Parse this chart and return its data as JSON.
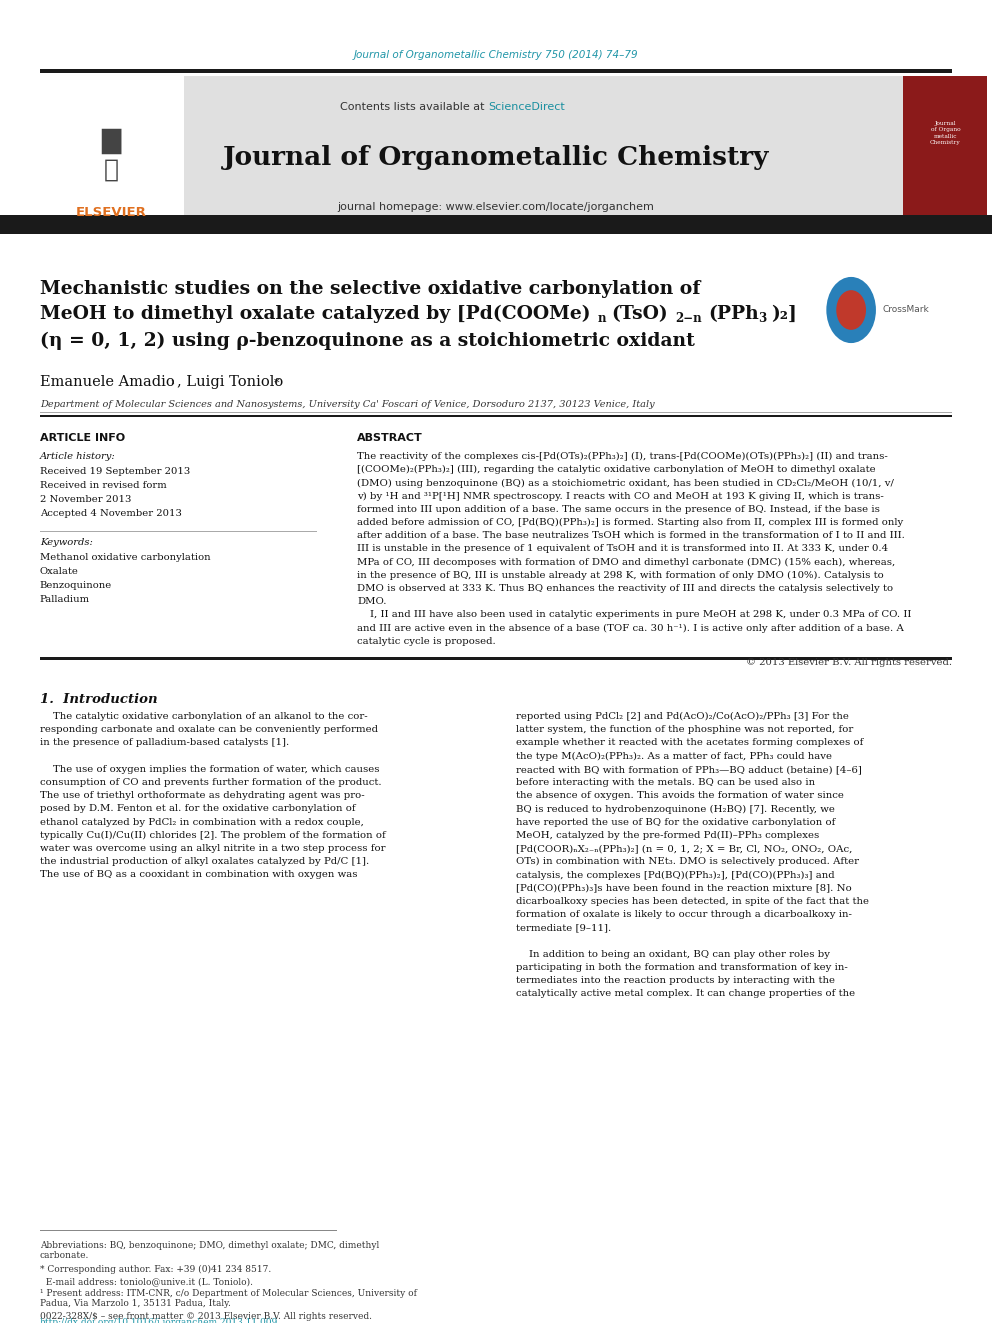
{
  "page_width": 9.92,
  "page_height": 13.23,
  "bg_color": "#ffffff",
  "journal_cite_color": "#2196a8",
  "sciencedirect_color": "#1a8fa0",
  "journal_cite": "Journal of Organometallic Chemistry 750 (2014) 74–79",
  "homepage_text": "journal homepage: www.elsevier.com/locate/jorganchem",
  "journal_title": "Journal of Organometallic Chemistry",
  "affiliation": "Department of Molecular Sciences and Nanosystems, University Ca' Foscari of Venice, Dorsoduro 2137, 30123 Venice, Italy",
  "received1": "Received 19 September 2013",
  "revised": "Received in revised form",
  "revised2": "2 November 2013",
  "accepted": "Accepted 4 November 2013",
  "keyword1": "Methanol oxidative carbonylation",
  "keyword2": "Oxalate",
  "keyword3": "Benzoquinone",
  "keyword4": "Palladium",
  "elsevier_color": "#e07020",
  "bottom_bar_color": "#2196a8",
  "abs_lines": [
    "The reactivity of the complexes cis-[Pd(OTs)₂(PPh₃)₂] (I), trans-[Pd(COOMe)(OTs)(PPh₃)₂] (II) and trans-",
    "[(COOMe)₂(PPh₃)₂] (III), regarding the catalytic oxidative carbonylation of MeOH to dimethyl oxalate",
    "(DMO) using benzoquinone (BQ) as a stoichiometric oxidant, has been studied in CD₂Cl₂/MeOH (10/1, v/",
    "v) by ¹H and ³¹P[¹H] NMR spectroscopy. I reacts with CO and MeOH at 193 K giving II, which is trans-",
    "formed into III upon addition of a base. The same occurs in the presence of BQ. Instead, if the base is",
    "added before admission of CO, [Pd(BQ)(PPh₃)₂] is formed. Starting also from II, complex III is formed only",
    "after addition of a base. The base neutralizes TsOH which is formed in the transformation of I to II and III.",
    "III is unstable in the presence of 1 equivalent of TsOH and it is transformed into II. At 333 K, under 0.4",
    "MPa of CO, III decomposes with formation of DMO and dimethyl carbonate (DMC) (15% each), whereas,",
    "in the presence of BQ, III is unstable already at 298 K, with formation of only DMO (10%). Catalysis to",
    "DMO is observed at 333 K. Thus BQ enhances the reactivity of III and directs the catalysis selectively to",
    "DMO.",
    "    I, II and III have also been used in catalytic experiments in pure MeOH at 298 K, under 0.3 MPa of CO. II",
    "and III are active even in the absence of a base (TOF ca. 30 h⁻¹). I is active only after addition of a base. A",
    "catalytic cycle is proposed."
  ],
  "intro_left_lines": [
    "    The catalytic oxidative carbonylation of an alkanol to the cor-",
    "responding carbonate and oxalate can be conveniently performed",
    "in the presence of palladium-based catalysts [1].",
    "",
    "    The use of oxygen implies the formation of water, which causes",
    "consumption of CO and prevents further formation of the product.",
    "The use of triethyl orthoformate as dehydrating agent was pro-",
    "posed by D.M. Fenton et al. for the oxidative carbonylation of",
    "ethanol catalyzed by PdCl₂ in combination with a redox couple,",
    "typically Cu(I)/Cu(II) chlorides [2]. The problem of the formation of",
    "water was overcome using an alkyl nitrite in a two step process for",
    "the industrial production of alkyl oxalates catalyzed by Pd/C [1].",
    "The use of BQ as a cooxidant in combination with oxygen was"
  ],
  "intro_right_lines": [
    "reported using PdCl₂ [2] and Pd(AcO)₂/Co(AcO)₂/PPh₃ [3] For the",
    "latter system, the function of the phosphine was not reported, for",
    "example whether it reacted with the acetates forming complexes of",
    "the type M(AcO)₂(PPh₃)₂. As a matter of fact, PPh₃ could have",
    "reacted with BQ with formation of PPh₃—BQ adduct (betaine) [4–6]",
    "before interacting with the metals. BQ can be used also in",
    "the absence of oxygen. This avoids the formation of water since",
    "BQ is reduced to hydrobenzoquinone (H₂BQ) [7]. Recently, we",
    "have reported the use of BQ for the oxidative carbonylation of",
    "MeOH, catalyzed by the pre-formed Pd(II)–PPh₃ complexes",
    "[Pd(COOR)ₙX₂₋ₙ(PPh₃)₂] (n = 0, 1, 2; X = Br, Cl, NO₂, ONO₂, OAc,",
    "OTs) in combination with NEt₃. DMO is selectively produced. After",
    "catalysis, the complexes [Pd(BQ)(PPh₃)₂], [Pd(CO)(PPh₃)₃] and",
    "[Pd(CO)(PPh₃)₃]s have been found in the reaction mixture [8]. No",
    "dicarboalkoxy species has been detected, in spite of the fact that the",
    "formation of oxalate is likely to occur through a dicarboalkoxy in-",
    "termediate [9–11].",
    "",
    "    In addition to being an oxidant, BQ can play other roles by",
    "participating in both the formation and transformation of key in-",
    "termediates into the reaction products by interacting with the",
    "catalytically active metal complex. It can change properties of the"
  ]
}
